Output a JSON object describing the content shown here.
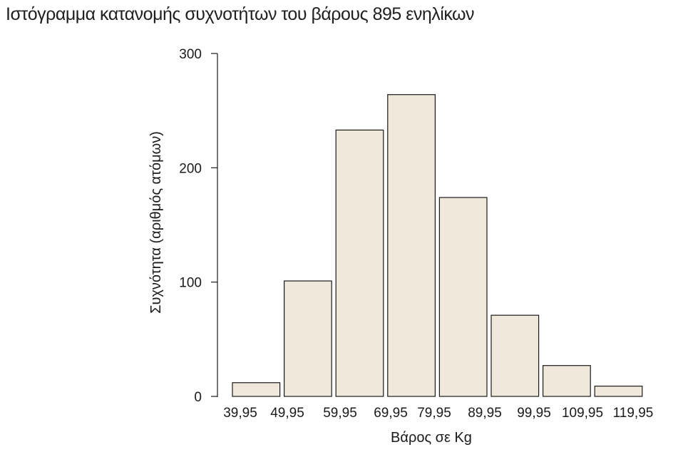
{
  "chart_data": {
    "type": "bar",
    "title": "Ιστόγραμμα κατανομής συχνοτήτων του βάρους 895 ενηλίκων",
    "xlabel": "Βάρος σε Kg",
    "ylabel": "Συχνότητα (αριθμός ατόμων)",
    "bin_edges": [
      39.95,
      49.95,
      59.95,
      69.95,
      79.95,
      89.95,
      99.95,
      109.95,
      119.95
    ],
    "x_tick_labels": [
      "39,95",
      "49,95",
      "59,95",
      "69,95",
      "79,95",
      "89,95",
      "99,95",
      "109,95",
      "119,95"
    ],
    "values": [
      12,
      101,
      233,
      264,
      174,
      71,
      27,
      9
    ],
    "ylim": [
      0,
      300
    ],
    "y_ticks": [
      0,
      100,
      200,
      300
    ],
    "grid": false,
    "bar_color": "#f0e8da",
    "bar_edge_color": "#1a1a1a"
  }
}
